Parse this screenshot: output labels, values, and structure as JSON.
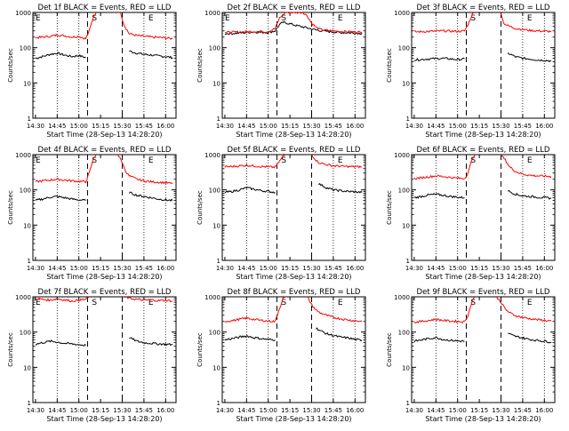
{
  "chart_data": [
    {
      "type": "line",
      "title": "Det 1f BLACK = Events, RED = LLD",
      "ylabel": "Counts/sec",
      "xlabel": "Start Time (28-Sep-13 14:28:20)",
      "x_ticks": [
        "14:30",
        "14:45",
        "15:00",
        "15:15",
        "15:30",
        "15:45",
        "16:00"
      ],
      "y_ticks": [
        "1",
        "10",
        "100",
        "1000"
      ],
      "y_scale": "log",
      "ylim": [
        1,
        1000
      ],
      "marker_labels": [
        "E",
        "S",
        "E"
      ],
      "series": [
        {
          "color": "#000000",
          "x": [
            14.5,
            14.58,
            14.67,
            14.75,
            14.83,
            14.92,
            15.0,
            15.08
          ],
          "y": [
            50,
            56,
            65,
            70,
            62,
            56,
            60,
            52
          ]
        },
        {
          "color": "#000000",
          "x": [
            15.58,
            15.67,
            15.75,
            15.83,
            15.92,
            16.0,
            16.08
          ],
          "y": [
            80,
            70,
            65,
            62,
            58,
            56,
            52
          ]
        },
        {
          "color": "#ff0000",
          "x": [
            14.5,
            14.58,
            14.67,
            14.75,
            14.83,
            14.92,
            15.0,
            15.08,
            15.12,
            15.17,
            15.2
          ],
          "y": [
            190,
            200,
            210,
            230,
            220,
            200,
            210,
            180,
            300,
            800,
            1000
          ]
        },
        {
          "color": "#ff0000",
          "x": [
            15.48,
            15.52,
            15.58,
            15.67,
            15.75,
            15.83,
            15.92,
            16.0,
            16.08
          ],
          "y": [
            1000,
            450,
            250,
            220,
            210,
            200,
            195,
            190,
            180
          ]
        }
      ]
    },
    {
      "type": "line",
      "title": "Det 2f BLACK = Events, RED = LLD",
      "ylabel": "Counts/sec",
      "xlabel": "Start Time (28-Sep-13 14:28:20)",
      "x_ticks": [
        "14:30",
        "14:45",
        "15:00",
        "15:15",
        "15:30",
        "15:45",
        "16:00"
      ],
      "y_ticks": [
        "1",
        "10",
        "100",
        "1000"
      ],
      "y_scale": "log",
      "ylim": [
        1,
        1000
      ],
      "marker_labels": [
        "E",
        "S",
        "E"
      ],
      "series": [
        {
          "color": "#000000",
          "x": [
            14.5,
            14.67,
            14.83,
            15.0,
            15.08,
            15.13,
            15.17,
            15.25,
            15.33,
            15.42,
            15.5,
            15.58,
            15.67,
            15.75,
            15.83,
            15.92,
            16.0,
            16.08
          ],
          "y": [
            250,
            260,
            280,
            270,
            300,
            450,
            520,
            480,
            420,
            380,
            340,
            310,
            290,
            280,
            270,
            265,
            260,
            255
          ]
        },
        {
          "color": "#ff0000",
          "x": [
            14.5,
            14.67,
            14.83,
            15.0,
            15.08,
            15.13,
            15.2,
            15.3,
            15.4,
            15.45,
            15.5,
            15.55,
            15.6,
            15.67,
            15.75,
            15.83,
            15.92,
            16.0,
            16.08
          ],
          "y": [
            270,
            280,
            290,
            285,
            350,
            700,
            1000,
            1000,
            1000,
            800,
            500,
            380,
            330,
            310,
            300,
            290,
            285,
            280,
            275
          ]
        }
      ]
    },
    {
      "type": "line",
      "title": "Det 3f BLACK = Events, RED = LLD",
      "ylabel": "Counts/sec",
      "xlabel": "Start Time (28-Sep-13 14:28:20)",
      "x_ticks": [
        "14:30",
        "14:45",
        "15:00",
        "15:15",
        "15:30",
        "15:45",
        "16:00"
      ],
      "y_ticks": [
        "1",
        "10",
        "100",
        "1000"
      ],
      "y_scale": "log",
      "ylim": [
        1,
        1000
      ],
      "marker_labels": [
        "S",
        "E"
      ],
      "series": [
        {
          "color": "#000000",
          "x": [
            14.5,
            14.67,
            14.83,
            15.0,
            15.08
          ],
          "y": [
            45,
            48,
            50,
            46,
            48
          ]
        },
        {
          "color": "#000000",
          "x": [
            15.58,
            15.67,
            15.75,
            15.83,
            15.92,
            16.0,
            16.08
          ],
          "y": [
            70,
            55,
            50,
            48,
            45,
            44,
            42
          ]
        },
        {
          "color": "#ff0000",
          "x": [
            14.5,
            14.67,
            14.83,
            15.0,
            15.08,
            15.12,
            15.17,
            15.2
          ],
          "y": [
            280,
            290,
            300,
            290,
            300,
            450,
            900,
            1000
          ]
        },
        {
          "color": "#ff0000",
          "x": [
            15.5,
            15.53,
            15.58,
            15.67,
            15.75,
            15.83,
            15.92,
            16.0,
            16.08
          ],
          "y": [
            1000,
            500,
            420,
            350,
            330,
            310,
            300,
            295,
            290
          ]
        }
      ]
    },
    {
      "type": "line",
      "title": "Det 4f BLACK = Events, RED = LLD",
      "ylabel": "Counts/sec",
      "xlabel": "Start Time (28-Sep-13 14:28:20)",
      "x_ticks": [
        "14:30",
        "14:45",
        "15:00",
        "15:15",
        "15:30",
        "15:45",
        "16:00"
      ],
      "y_ticks": [
        "1",
        "10",
        "100",
        "1000"
      ],
      "y_scale": "log",
      "ylim": [
        1,
        1000
      ],
      "marker_labels": [
        "E",
        "S",
        "E"
      ],
      "series": [
        {
          "color": "#000000",
          "x": [
            14.5,
            14.58,
            14.67,
            14.75,
            14.83,
            14.92,
            15.0,
            15.08
          ],
          "y": [
            50,
            55,
            62,
            65,
            60,
            55,
            52,
            50
          ]
        },
        {
          "color": "#000000",
          "x": [
            15.58,
            15.67,
            15.75,
            15.83,
            15.92,
            16.0,
            16.08
          ],
          "y": [
            85,
            70,
            65,
            60,
            55,
            52,
            50
          ]
        },
        {
          "color": "#ff0000",
          "x": [
            14.5,
            14.58,
            14.67,
            14.75,
            14.83,
            14.92,
            15.0,
            15.08,
            15.12,
            15.17,
            15.2
          ],
          "y": [
            170,
            180,
            190,
            200,
            190,
            180,
            175,
            170,
            300,
            800,
            1000
          ]
        },
        {
          "color": "#ff0000",
          "x": [
            15.45,
            15.5,
            15.55,
            15.58,
            15.67,
            15.75,
            15.83,
            15.92,
            16.0,
            16.08
          ],
          "y": [
            1000,
            600,
            300,
            250,
            200,
            180,
            170,
            165,
            160,
            150
          ]
        }
      ]
    },
    {
      "type": "line",
      "title": "Det 5f BLACK = Events, RED = LLD",
      "ylabel": "Counts/sec",
      "xlabel": "Start Time (28-Sep-13 14:28:20)",
      "x_ticks": [
        "14:30",
        "14:45",
        "15:00",
        "15:15",
        "15:30",
        "15:45",
        "16:00"
      ],
      "y_ticks": [
        "1",
        "10",
        "100",
        "1000"
      ],
      "y_scale": "log",
      "ylim": [
        1,
        1000
      ],
      "marker_labels": [
        "S",
        "E"
      ],
      "series": [
        {
          "color": "#000000",
          "x": [
            14.5,
            14.58,
            14.67,
            14.75,
            14.83,
            14.92,
            15.0,
            15.08
          ],
          "y": [
            85,
            90,
            100,
            115,
            105,
            95,
            90,
            85
          ]
        },
        {
          "color": "#000000",
          "x": [
            15.58,
            15.67,
            15.75,
            15.83,
            15.92,
            16.0,
            16.08
          ],
          "y": [
            150,
            115,
            100,
            95,
            90,
            88,
            85
          ]
        },
        {
          "color": "#ff0000",
          "x": [
            14.5,
            14.58,
            14.67,
            14.75,
            14.83,
            14.92,
            15.0,
            15.08,
            15.12,
            15.17,
            15.2
          ],
          "y": [
            450,
            460,
            480,
            500,
            480,
            460,
            450,
            440,
            600,
            900,
            1000
          ]
        },
        {
          "color": "#ff0000",
          "x": [
            15.5,
            15.55,
            15.58,
            15.67,
            15.75,
            15.83,
            15.92,
            16.0,
            16.08
          ],
          "y": [
            1000,
            700,
            600,
            520,
            480,
            470,
            460,
            455,
            450
          ]
        }
      ]
    },
    {
      "type": "line",
      "title": "Det 6f BLACK = Events, RED = LLD",
      "ylabel": "Counts/sec",
      "xlabel": "Start Time (28-Sep-13 14:28:20)",
      "x_ticks": [
        "14:30",
        "14:45",
        "15:00",
        "15:15",
        "15:30",
        "15:45",
        "16:00"
      ],
      "y_ticks": [
        "1",
        "10",
        "100",
        "1000"
      ],
      "y_scale": "log",
      "ylim": [
        1,
        1000
      ],
      "marker_labels": [
        "S",
        "E"
      ],
      "series": [
        {
          "color": "#000000",
          "x": [
            14.5,
            14.58,
            14.67,
            14.75,
            14.83,
            14.92,
            15.0,
            15.08
          ],
          "y": [
            60,
            65,
            72,
            75,
            70,
            65,
            62,
            60
          ]
        },
        {
          "color": "#000000",
          "x": [
            15.58,
            15.67,
            15.75,
            15.83,
            15.92,
            16.0,
            16.08
          ],
          "y": [
            95,
            75,
            68,
            65,
            62,
            60,
            58
          ]
        },
        {
          "color": "#ff0000",
          "x": [
            14.5,
            14.58,
            14.67,
            14.75,
            14.83,
            14.92,
            15.0,
            15.08,
            15.12,
            15.17,
            15.2
          ],
          "y": [
            210,
            220,
            235,
            250,
            240,
            225,
            215,
            210,
            300,
            800,
            1000
          ]
        },
        {
          "color": "#ff0000",
          "x": [
            15.5,
            15.55,
            15.6,
            15.67,
            15.75,
            15.83,
            15.92,
            16.0,
            16.08
          ],
          "y": [
            1000,
            700,
            450,
            330,
            280,
            260,
            250,
            245,
            240
          ]
        }
      ]
    },
    {
      "type": "line",
      "title": "Det 7f BLACK = Events, RED = LLD",
      "ylabel": "Counts/sec",
      "xlabel": "Start Time (28-Sep-13 14:28:20)",
      "x_ticks": [
        "14:30",
        "14:45",
        "15:00",
        "15:15",
        "15:30",
        "15:45",
        "16:00"
      ],
      "y_ticks": [
        "1",
        "10",
        "100",
        "1000"
      ],
      "y_scale": "log",
      "ylim": [
        1,
        1000
      ],
      "marker_labels": [
        "E",
        "S",
        "E"
      ],
      "series": [
        {
          "color": "#000000",
          "x": [
            14.5,
            14.58,
            14.67,
            14.75,
            14.83,
            14.92,
            15.0,
            15.08
          ],
          "y": [
            45,
            50,
            55,
            52,
            48,
            46,
            44,
            42
          ]
        },
        {
          "color": "#000000",
          "x": [
            15.58,
            15.67,
            15.75,
            15.83,
            15.92,
            16.0,
            16.08
          ],
          "y": [
            70,
            55,
            50,
            48,
            46,
            45,
            44
          ]
        },
        {
          "color": "#ff0000",
          "x": [
            14.5,
            14.58,
            14.67,
            14.75,
            14.83,
            14.92,
            15.0,
            15.08,
            15.12
          ],
          "y": [
            900,
            850,
            800,
            880,
            820,
            760,
            800,
            850,
            1000
          ]
        },
        {
          "color": "#ff0000",
          "x": [
            15.55,
            15.58,
            15.67,
            15.75,
            15.83,
            15.92,
            16.0,
            16.08
          ],
          "y": [
            1000,
            900,
            850,
            800,
            820,
            780,
            800,
            760
          ]
        }
      ]
    },
    {
      "type": "line",
      "title": "Det 8f BLACK = Events, RED = LLD",
      "ylabel": "Counts/sec",
      "xlabel": "Start Time (28-Sep-13 14:28:20)",
      "x_ticks": [
        "14:30",
        "14:45",
        "15:00",
        "15:15",
        "15:30",
        "15:45",
        "16:00"
      ],
      "y_ticks": [
        "1",
        "10",
        "100",
        "1000"
      ],
      "y_scale": "log",
      "ylim": [
        1,
        1000
      ],
      "marker_labels": [
        "S",
        "E"
      ],
      "series": [
        {
          "color": "#000000",
          "x": [
            14.5,
            14.58,
            14.67,
            14.75,
            14.83,
            14.92,
            15.0,
            15.08
          ],
          "y": [
            60,
            65,
            72,
            78,
            70,
            65,
            62,
            60
          ]
        },
        {
          "color": "#000000",
          "x": [
            15.55,
            15.6,
            15.67,
            15.75,
            15.83,
            15.92,
            16.0,
            16.08
          ],
          "y": [
            130,
            110,
            90,
            80,
            72,
            68,
            62,
            58
          ]
        },
        {
          "color": "#ff0000",
          "x": [
            14.5,
            14.58,
            14.67,
            14.75,
            14.83,
            14.92,
            15.0,
            15.08,
            15.12,
            15.17,
            15.2
          ],
          "y": [
            200,
            210,
            230,
            250,
            230,
            215,
            205,
            200,
            400,
            900,
            1000
          ]
        },
        {
          "color": "#ff0000",
          "x": [
            15.45,
            15.5,
            15.55,
            15.6,
            15.67,
            15.75,
            15.83,
            15.92,
            16.0,
            16.08
          ],
          "y": [
            1000,
            600,
            420,
            350,
            300,
            260,
            240,
            220,
            210,
            200
          ]
        }
      ]
    },
    {
      "type": "line",
      "title": "Det 9f BLACK = Events, RED = LLD",
      "ylabel": "Counts/sec",
      "xlabel": "Start Time (28-Sep-13 14:28:20)",
      "x_ticks": [
        "14:30",
        "14:45",
        "15:00",
        "15:15",
        "15:30",
        "15:45",
        "16:00"
      ],
      "y_ticks": [
        "1",
        "10",
        "100",
        "1000"
      ],
      "y_scale": "log",
      "ylim": [
        1,
        1000
      ],
      "marker_labels": [
        "S",
        "E"
      ],
      "series": [
        {
          "color": "#000000",
          "x": [
            14.5,
            14.58,
            14.67,
            14.75,
            14.83,
            14.92,
            15.0,
            15.08
          ],
          "y": [
            55,
            60,
            65,
            70,
            62,
            58,
            56,
            55
          ]
        },
        {
          "color": "#000000",
          "x": [
            15.58,
            15.67,
            15.75,
            15.83,
            15.92,
            16.0,
            16.08
          ],
          "y": [
            90,
            75,
            68,
            62,
            58,
            55,
            52
          ]
        },
        {
          "color": "#ff0000",
          "x": [
            14.5,
            14.58,
            14.67,
            14.75,
            14.83,
            14.92,
            15.0,
            15.08,
            15.12,
            15.17,
            15.2
          ],
          "y": [
            190,
            200,
            215,
            230,
            215,
            205,
            200,
            195,
            300,
            800,
            1000
          ]
        },
        {
          "color": "#ff0000",
          "x": [
            15.45,
            15.5,
            15.55,
            15.6,
            15.67,
            15.75,
            15.83,
            15.92,
            16.0,
            16.08
          ],
          "y": [
            1000,
            700,
            450,
            350,
            290,
            260,
            240,
            225,
            215,
            205
          ]
        }
      ]
    }
  ]
}
